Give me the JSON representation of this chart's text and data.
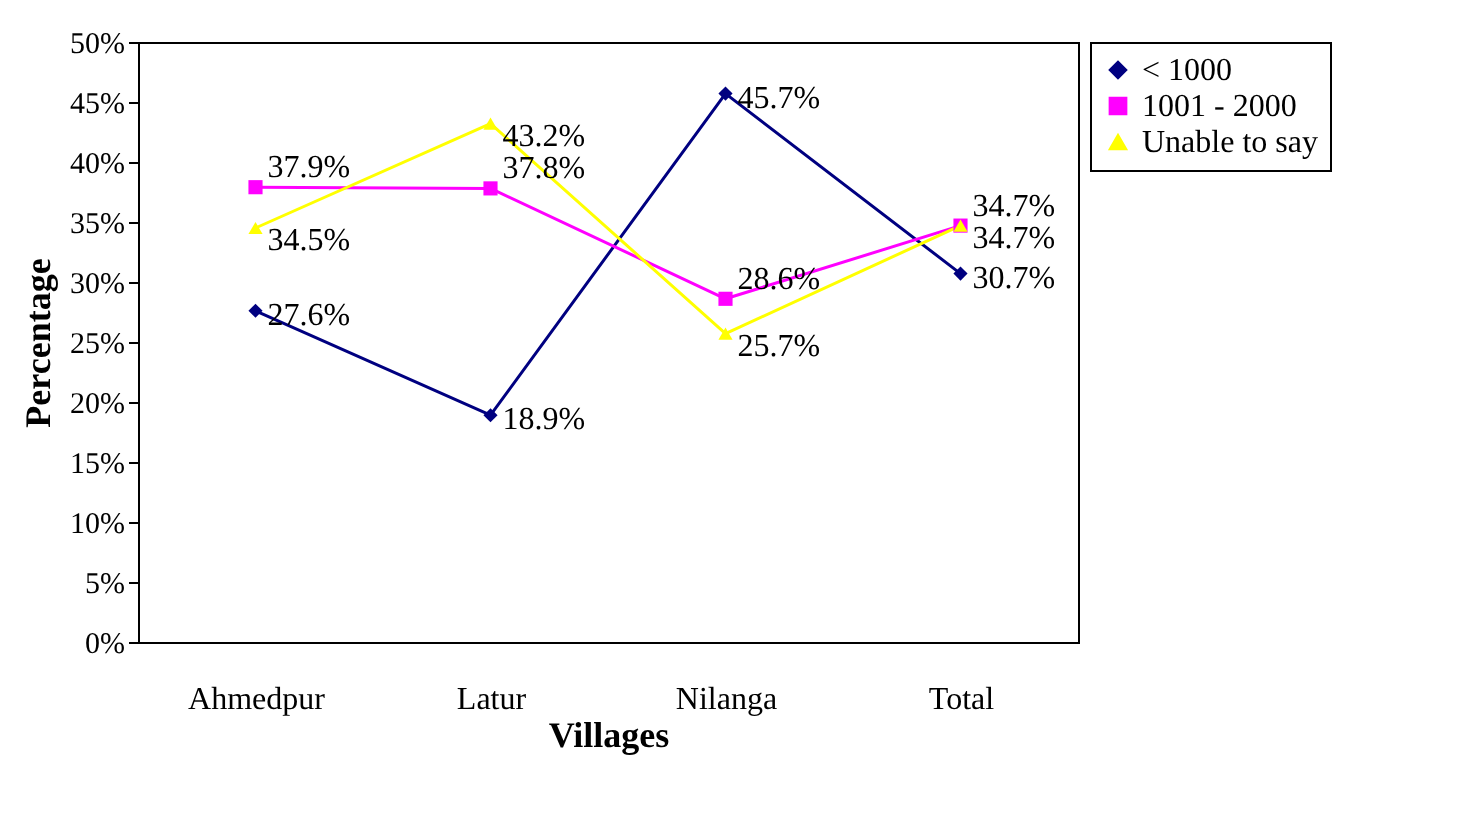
{
  "chart_data": {
    "type": "line",
    "xlabel": "Villages",
    "ylabel": "Percentage",
    "categories": [
      "Ahmedpur",
      "Latur",
      "Nilanga",
      "Total"
    ],
    "series": [
      {
        "name": "< 1000",
        "color": "#000080",
        "marker": "diamond",
        "values": [
          27.6,
          18.9,
          45.7,
          30.7
        ],
        "value_labels": [
          "27.6%",
          "18.9%",
          "45.7%",
          "30.7%"
        ]
      },
      {
        "name": "1001 - 2000",
        "color": "#ff00ff",
        "marker": "square",
        "values": [
          37.9,
          37.8,
          28.6,
          34.7
        ],
        "value_labels": [
          "37.9%",
          "37.8%",
          "28.6%",
          "34.7%"
        ]
      },
      {
        "name": "Unable to say",
        "color": "#ffff00",
        "marker": "triangle",
        "values": [
          34.5,
          43.2,
          25.7,
          34.7
        ],
        "value_labels": [
          "34.5%",
          "43.2%",
          "25.7%",
          "34.7%"
        ]
      }
    ],
    "ylim": [
      0,
      50
    ],
    "yticks": [
      {
        "value": 0,
        "label": "0%"
      },
      {
        "value": 5,
        "label": "5%"
      },
      {
        "value": 10,
        "label": "10%"
      },
      {
        "value": 15,
        "label": "15%"
      },
      {
        "value": 20,
        "label": "20%"
      },
      {
        "value": 25,
        "label": "25%"
      },
      {
        "value": 30,
        "label": "30%"
      },
      {
        "value": 35,
        "label": "35%"
      },
      {
        "value": 40,
        "label": "40%"
      },
      {
        "value": 45,
        "label": "45%"
      },
      {
        "value": 50,
        "label": "50%"
      }
    ],
    "grid": false,
    "legend": "right",
    "line_style": "solid"
  }
}
